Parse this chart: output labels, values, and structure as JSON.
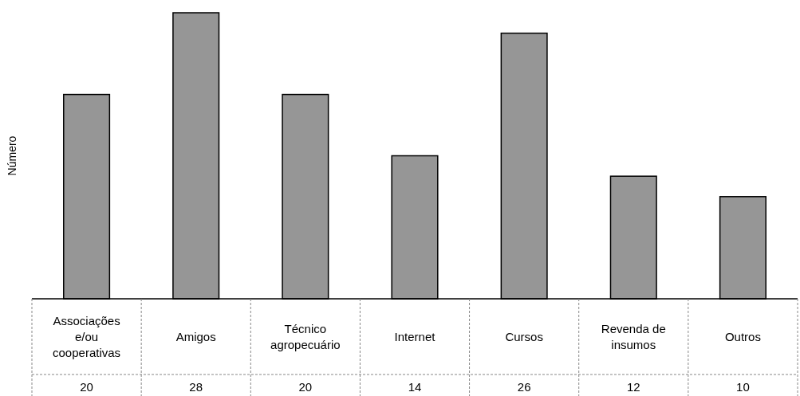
{
  "chart_data": {
    "type": "bar",
    "ylabel": "Número",
    "categories": [
      "Associações e/ou cooperativas",
      "Amigos",
      "Técnico agropecuário",
      "Internet",
      "Cursos",
      "Revenda de insumos",
      "Outros"
    ],
    "values": [
      20,
      28,
      20,
      14,
      26,
      12,
      10
    ],
    "color": "#969696",
    "data_labels": true
  }
}
